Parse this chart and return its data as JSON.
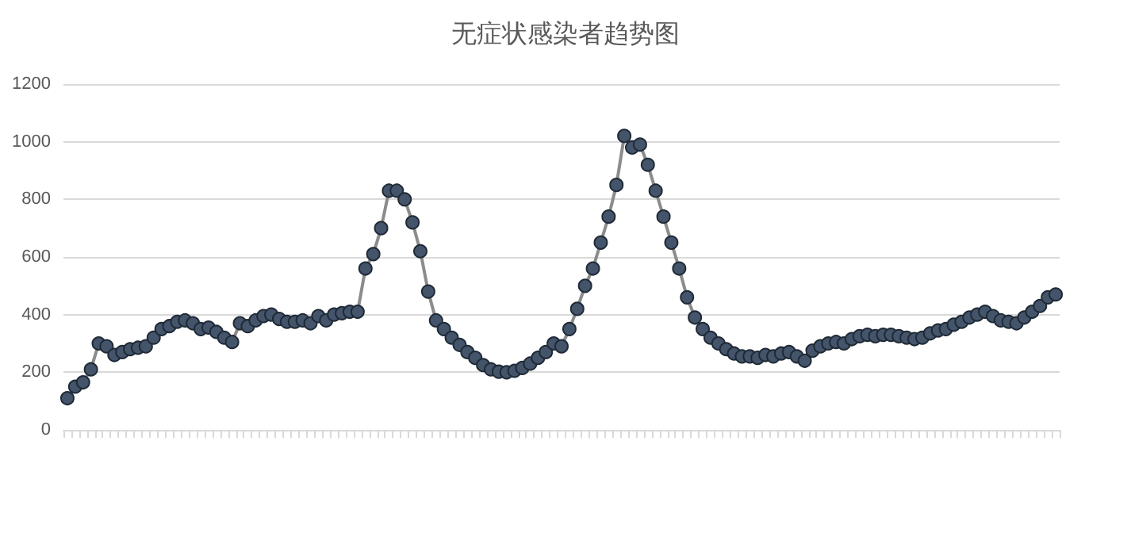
{
  "chart_data": {
    "type": "line",
    "title": "无症状感染者趋势图",
    "categories": [
      null,
      null,
      null,
      null,
      null,
      null,
      null,
      null,
      null,
      null,
      null,
      null,
      null,
      null,
      null,
      null,
      null,
      null,
      null,
      null,
      null,
      null,
      null,
      null,
      null,
      null,
      null,
      null,
      null,
      null,
      null,
      null,
      null,
      null,
      null,
      null,
      null,
      null,
      null,
      null,
      null,
      null,
      null,
      null,
      null,
      null,
      null,
      null,
      null,
      null,
      null,
      null,
      null,
      null,
      null,
      null,
      null,
      null,
      null,
      null,
      null,
      null,
      null,
      null,
      null,
      null,
      null,
      null,
      null,
      null,
      null,
      null,
      null,
      null,
      null,
      null,
      null,
      null,
      null,
      null,
      null,
      null,
      null,
      null,
      null,
      null,
      null,
      null,
      null,
      null,
      null,
      null,
      null,
      null,
      null,
      null,
      null,
      null,
      null,
      null,
      null,
      null,
      null,
      null,
      null,
      null,
      null,
      null,
      null,
      null,
      null,
      null,
      null,
      null,
      null,
      null,
      null,
      null,
      null,
      null,
      null,
      null,
      null,
      null,
      null,
      null,
      null
    ],
    "series": [
      {
        "color": "#44546a",
        "values": [
          110,
          150,
          165,
          210,
          300,
          290,
          260,
          270,
          280,
          285,
          290,
          320,
          350,
          360,
          375,
          380,
          370,
          350,
          355,
          340,
          320,
          305,
          370,
          360,
          380,
          395,
          400,
          385,
          375,
          375,
          380,
          370,
          395,
          380,
          400,
          405,
          410,
          410,
          560,
          610,
          700,
          830,
          830,
          800,
          720,
          620,
          480,
          380,
          350,
          320,
          295,
          270,
          250,
          225,
          210,
          202,
          200,
          205,
          215,
          230,
          250,
          270,
          300,
          290,
          350,
          420,
          500,
          560,
          650,
          740,
          850,
          1020,
          980,
          990,
          920,
          830,
          740,
          650,
          560,
          460,
          390,
          350,
          320,
          300,
          280,
          265,
          255,
          255,
          250,
          260,
          255,
          265,
          270,
          255,
          240,
          275,
          290,
          300,
          305,
          300,
          315,
          325,
          330,
          325,
          330,
          330,
          325,
          320,
          315,
          320,
          335,
          345,
          350,
          365,
          375,
          390,
          400,
          410,
          395,
          380,
          375,
          370,
          390,
          410,
          430,
          460,
          470
        ]
      }
    ],
    "ylim": [
      0,
      1200
    ],
    "yticks": [
      0,
      200,
      400,
      600,
      800,
      1000,
      1200
    ],
    "grid": "y",
    "marker": "circle"
  }
}
